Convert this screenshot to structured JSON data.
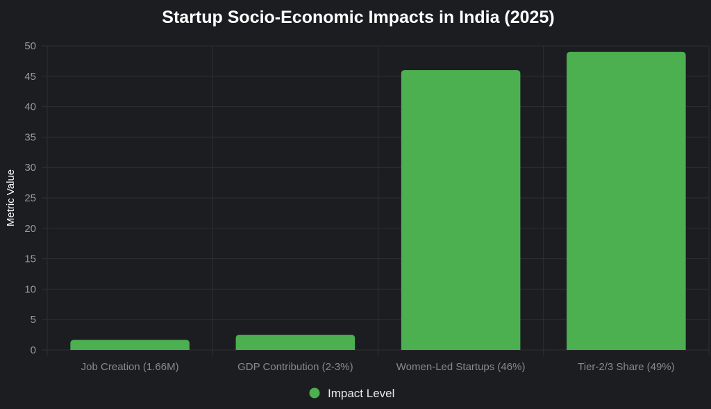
{
  "chart_data": {
    "type": "bar",
    "title": "Startup Socio-Economic Impacts in India (2025)",
    "xlabel": "",
    "ylabel": "Metric Value",
    "categories": [
      "Job Creation (1.66M)",
      "GDP Contribution (2-3%)",
      "Women-Led Startups (46%)",
      "Tier-2/3 Share (49%)"
    ],
    "series": [
      {
        "name": "Impact Level",
        "values": [
          1.66,
          2.5,
          46,
          49
        ],
        "color": "#4caf50"
      }
    ],
    "ylim": [
      0,
      50
    ],
    "yticks": [
      0,
      5,
      10,
      15,
      20,
      25,
      30,
      35,
      40,
      45,
      50
    ],
    "grid": true,
    "legend": {
      "position": "bottom",
      "entries": [
        "Impact Level"
      ]
    }
  }
}
